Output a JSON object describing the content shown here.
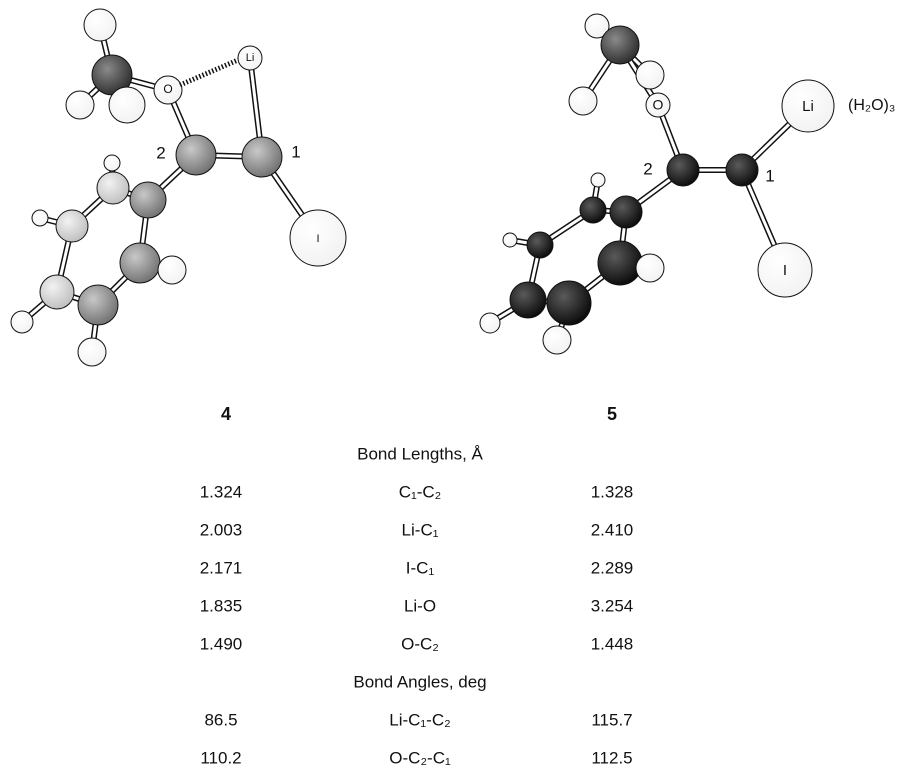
{
  "structures": [
    {
      "label": "4",
      "atoms": {
        "oxygen": "O",
        "lithium": "Li",
        "c2": "2",
        "c1": "1",
        "iodine": "I"
      }
    },
    {
      "label": "5",
      "atoms": {
        "oxygen": "O",
        "lithium": "Li",
        "c2": "2",
        "c1": "1",
        "iodine": "I"
      },
      "solvent": "(H₂O)₃"
    }
  ],
  "table": {
    "sections": [
      {
        "title": "Bond Lengths, Å",
        "rows": [
          [
            "1.324",
            "C₁-C₂",
            "1.328"
          ],
          [
            "2.003",
            "Li-C₁",
            "2.410"
          ],
          [
            "2.171",
            "I-C₁",
            "2.289"
          ],
          [
            "1.835",
            "Li-O",
            "3.254"
          ],
          [
            "1.490",
            "O-C₂",
            "1.448"
          ]
        ]
      },
      {
        "title": "Bond Angles, deg",
        "rows": [
          [
            "86.5",
            "Li-C₁-C₂",
            "115.7"
          ],
          [
            "110.2",
            "O-C₂-C₁",
            "112.5"
          ]
        ]
      }
    ]
  }
}
